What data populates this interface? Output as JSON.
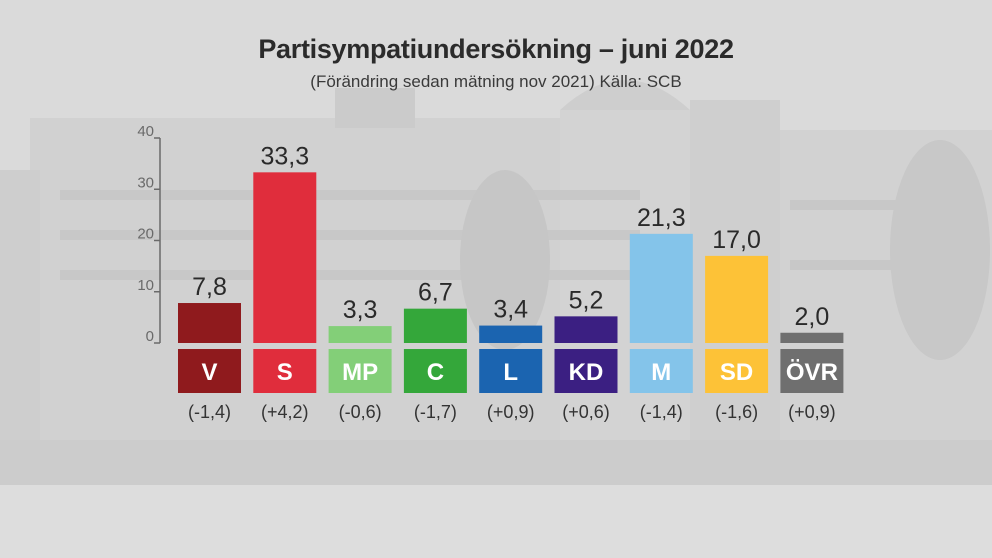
{
  "chart_data": {
    "type": "bar",
    "title": "Partisympatiundersökning – juni 2022",
    "subtitle": "(Förändring sedan mätning nov 2021) Källa: SCB",
    "ylim": [
      0,
      40
    ],
    "yticks": [
      "0",
      "10",
      "20",
      "30",
      "40"
    ],
    "grid": false,
    "categories": [
      "V",
      "S",
      "MP",
      "C",
      "L",
      "KD",
      "M",
      "SD",
      "ÖVR"
    ],
    "values": [
      7.8,
      33.3,
      3.3,
      6.7,
      3.4,
      5.2,
      21.3,
      17.0,
      2.0
    ],
    "value_labels": [
      "7,8",
      "33,3",
      "3,3",
      "6,7",
      "3,4",
      "5,2",
      "21,3",
      "17,0",
      "2,0"
    ],
    "changes": [
      "(-1,4)",
      "(+4,2)",
      "(-0,6)",
      "(-1,7)",
      "(+0,9)",
      "(+0,6)",
      "(-1,4)",
      "(-1,6)",
      "(+0,9)"
    ],
    "colors": [
      "#8f1a1d",
      "#e02d3c",
      "#83cf78",
      "#34a73a",
      "#1b64b0",
      "#3b1f82",
      "#84c4ea",
      "#fdc237",
      "#6f6f6f"
    ]
  }
}
